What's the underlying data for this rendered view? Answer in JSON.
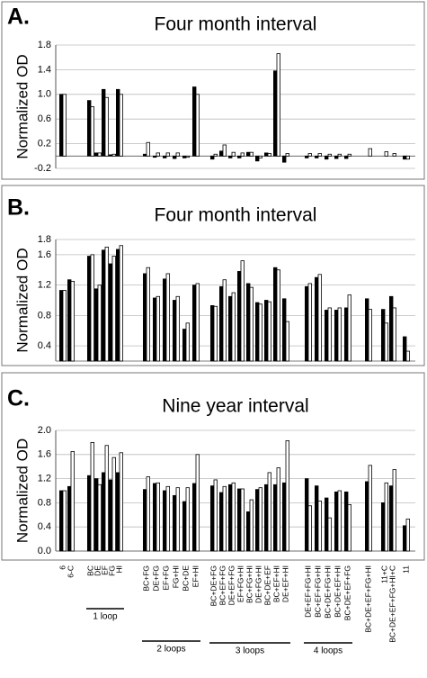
{
  "chart_data": [
    {
      "type": "bar",
      "label": "A.",
      "title": "Four month interval",
      "y_label": "Normalized OD",
      "ylim": [
        -0.2,
        1.8
      ],
      "yticks": [
        -0.2,
        0.2,
        0.6,
        {
          "value": 1,
          "label": "1.0"
        },
        1.4,
        1.8
      ],
      "grid": true,
      "series": [
        {
          "color": "#000000",
          "values": [
            1.0,
            null,
            0.9,
            0.05,
            1.08,
            0.02,
            1.08,
            0.03,
            -0.02,
            -0.03,
            -0.04,
            -0.03,
            1.12,
            -0.05,
            0.08,
            -0.03,
            -0.03,
            0.06,
            -0.08,
            0.05,
            1.38,
            -0.1,
            -0.03,
            -0.03,
            -0.05,
            -0.04,
            -0.04,
            null,
            null,
            null,
            -0.05
          ]
        },
        {
          "color": "#ffffff",
          "values": [
            1.0,
            null,
            0.8,
            0.05,
            0.95,
            0.03,
            1.0,
            0.22,
            0.05,
            0.05,
            0.05,
            -0.02,
            1.0,
            0.03,
            0.18,
            0.06,
            0.05,
            0.06,
            -0.03,
            0.04,
            1.66,
            0.04,
            0.04,
            0.04,
            0.03,
            0.03,
            0.03,
            0.12,
            0.07,
            0.04,
            -0.05
          ]
        }
      ]
    },
    {
      "type": "bar",
      "label": "B.",
      "title": "Four month interval",
      "y_label": "Normalized OD",
      "ylim": [
        0.2,
        1.8
      ],
      "yticks": [
        0.4,
        0.8,
        1.2,
        1.6,
        1.8
      ],
      "grid": true,
      "series": [
        {
          "color": "#000000",
          "values": [
            1.13,
            1.27,
            1.58,
            1.15,
            1.66,
            1.48,
            1.67,
            1.35,
            1.03,
            1.28,
            1.0,
            0.62,
            1.2,
            0.93,
            1.18,
            1.05,
            1.38,
            1.22,
            0.97,
            1.0,
            1.43,
            1.02,
            1.18,
            1.3,
            0.87,
            0.87,
            0.9,
            1.02,
            0.88,
            1.05,
            0.52
          ]
        },
        {
          "color": "#ffffff",
          "values": [
            1.13,
            1.25,
            1.6,
            1.2,
            1.7,
            1.58,
            1.72,
            1.43,
            1.05,
            1.35,
            1.05,
            0.7,
            1.22,
            0.92,
            1.27,
            1.1,
            1.52,
            1.17,
            0.95,
            0.98,
            1.4,
            0.72,
            1.22,
            1.34,
            0.9,
            0.9,
            1.07,
            0.88,
            0.7,
            0.9,
            0.33
          ]
        }
      ]
    },
    {
      "type": "bar",
      "label": "C.",
      "title": "Nine year interval",
      "y_label": "Normalized OD",
      "ylim": [
        0,
        2
      ],
      "yticks": [
        {
          "value": 0,
          "label": "0.0"
        },
        0.4,
        0.8,
        1.2,
        1.6,
        {
          "value": 2,
          "label": "2.0"
        }
      ],
      "grid": true,
      "categories": [
        "6",
        "6-C",
        "BC",
        "DE",
        "EF",
        "FG",
        "HI",
        "BC+FG",
        "DE+FG",
        "EF+FG",
        "FG+HI",
        "BC+DE",
        "EF+HI",
        "BC+DE+FG",
        "BC+EF+FG",
        "DE+EF+FG",
        "EF+FG+HI",
        "BC+FG+HI",
        "DE+FG+HI",
        "BC+DE+EF",
        "BC+EF+HI",
        "DE+EF+HI",
        "DE+EF+FG+HI",
        "BC+EF+FG+HI",
        "BC+DE+FG+HI",
        "BC+DE+EF+HI",
        "BC+DE+EF+FG",
        "BC+DE+EF+FG+HI",
        "11+C",
        "BC+DE+EF+FG+HI+C",
        "11"
      ],
      "groups": [
        "1 loop",
        "2 loops",
        "3 loops",
        "4 loops"
      ],
      "series": [
        {
          "color": "#000000",
          "values": [
            1.0,
            1.07,
            1.25,
            1.2,
            1.3,
            1.18,
            1.3,
            1.02,
            1.12,
            1.0,
            0.92,
            0.82,
            1.12,
            1.08,
            0.97,
            1.1,
            1.03,
            0.65,
            1.02,
            1.1,
            1.1,
            1.13,
            1.2,
            1.08,
            0.88,
            0.98,
            0.98,
            1.15,
            0.8,
            1.08,
            0.42
          ]
        },
        {
          "color": "#ffffff",
          "values": [
            1.0,
            1.65,
            1.8,
            1.1,
            1.75,
            1.55,
            1.63,
            1.23,
            1.13,
            1.07,
            1.05,
            1.05,
            1.6,
            1.18,
            1.07,
            1.13,
            1.03,
            0.85,
            1.05,
            1.3,
            1.38,
            1.83,
            0.75,
            0.83,
            0.55,
            1.0,
            0.77,
            1.42,
            1.13,
            1.35,
            0.53
          ]
        }
      ]
    }
  ]
}
